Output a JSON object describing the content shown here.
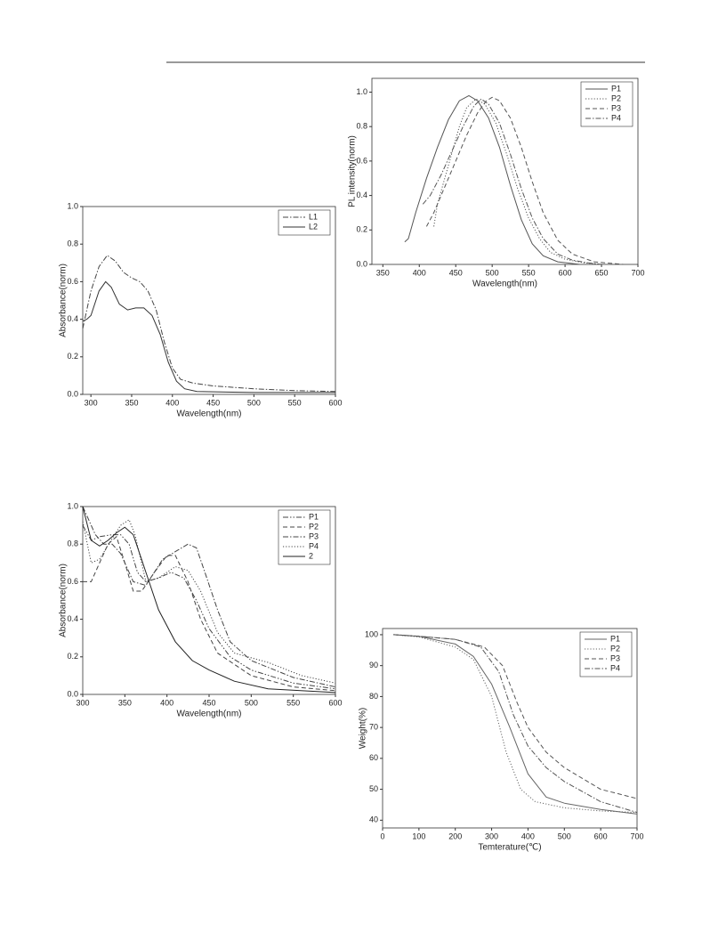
{
  "chart_data": [
    {
      "type": "line",
      "ylabel": "PL intensity(norm)",
      "xlabel": "Wavelength(nm)",
      "legend": "upper right",
      "xlim": [
        335,
        700
      ],
      "ylim": [
        0,
        1.08
      ],
      "xticks": [
        350,
        400,
        450,
        500,
        550,
        600,
        650,
        700
      ],
      "yticks": [
        {
          "value": 0,
          "label": "0.0"
        },
        0.2,
        0.4,
        0.6,
        0.8,
        {
          "value": 1,
          "label": "1.0"
        }
      ],
      "series": [
        {
          "name": "P1",
          "color": "#555555",
          "linestyle": "-",
          "x": [
            380,
            385,
            395,
            410,
            425,
            440,
            455,
            468,
            480,
            495,
            510,
            525,
            540,
            555,
            570,
            590,
            620
          ],
          "values": [
            0.13,
            0.15,
            0.3,
            0.5,
            0.68,
            0.84,
            0.95,
            0.98,
            0.95,
            0.85,
            0.68,
            0.46,
            0.26,
            0.12,
            0.05,
            0.015,
            0.0
          ]
        },
        {
          "name": "P2",
          "color": "#555555",
          "linestyle": ":",
          "x": [
            420,
            425,
            435,
            445,
            455,
            465,
            478,
            490,
            505,
            520,
            535,
            550,
            565,
            580,
            600,
            625,
            650
          ],
          "values": [
            0.22,
            0.35,
            0.5,
            0.65,
            0.8,
            0.91,
            0.96,
            0.93,
            0.82,
            0.64,
            0.44,
            0.27,
            0.15,
            0.07,
            0.03,
            0.01,
            0.0
          ]
        },
        {
          "name": "P3",
          "color": "#555555",
          "linestyle": "--",
          "x": [
            410,
            420,
            435,
            450,
            465,
            480,
            492,
            500,
            510,
            525,
            540,
            555,
            570,
            590,
            610,
            640,
            680
          ],
          "values": [
            0.22,
            0.3,
            0.45,
            0.6,
            0.75,
            0.88,
            0.95,
            0.97,
            0.95,
            0.85,
            0.68,
            0.48,
            0.3,
            0.14,
            0.06,
            0.015,
            0.0
          ]
        },
        {
          "name": "P4",
          "color": "#555555",
          "linestyle": "-.",
          "x": [
            405,
            415,
            430,
            445,
            460,
            475,
            485,
            495,
            510,
            525,
            540,
            555,
            570,
            590,
            610,
            630,
            650
          ],
          "values": [
            0.35,
            0.4,
            0.52,
            0.66,
            0.8,
            0.92,
            0.96,
            0.93,
            0.82,
            0.64,
            0.44,
            0.27,
            0.15,
            0.06,
            0.025,
            0.01,
            0.0
          ]
        }
      ]
    },
    {
      "type": "line",
      "ylabel": "Absorbance(norm)",
      "xlabel": "Wavelength(nm)",
      "legend": "upper right",
      "xlim": [
        290,
        600
      ],
      "ylim": [
        0,
        1.0
      ],
      "xticks": [
        300,
        350,
        400,
        450,
        500,
        550,
        600
      ],
      "yticks": [
        {
          "value": 0,
          "label": "0.0"
        },
        0.2,
        0.4,
        0.6,
        0.8,
        {
          "value": 1,
          "label": "1.0"
        }
      ],
      "series": [
        {
          "name": "L1",
          "color": "#444444",
          "linestyle": "-.",
          "x": [
            290,
            300,
            310,
            320,
            330,
            340,
            350,
            360,
            370,
            380,
            390,
            400,
            410,
            425,
            450,
            500,
            550,
            600
          ],
          "values": [
            0.35,
            0.55,
            0.68,
            0.74,
            0.71,
            0.65,
            0.62,
            0.6,
            0.55,
            0.45,
            0.28,
            0.14,
            0.08,
            0.06,
            0.045,
            0.03,
            0.02,
            0.015
          ]
        },
        {
          "name": "L2",
          "color": "#333333",
          "linestyle": "-",
          "x": [
            290,
            295,
            300,
            310,
            318,
            325,
            335,
            345,
            355,
            365,
            375,
            385,
            395,
            405,
            415,
            430,
            500,
            600
          ],
          "values": [
            0.39,
            0.4,
            0.42,
            0.55,
            0.6,
            0.57,
            0.48,
            0.45,
            0.46,
            0.46,
            0.42,
            0.32,
            0.17,
            0.07,
            0.03,
            0.015,
            0.01,
            0.01
          ]
        }
      ]
    },
    {
      "type": "line",
      "ylabel": "Absorbance(norm)",
      "xlabel": "Wavelength(nm)",
      "legend": "upper right",
      "xlim": [
        300,
        600
      ],
      "ylim": [
        0,
        1.0
      ],
      "xticks": [
        300,
        350,
        400,
        450,
        500,
        550,
        600
      ],
      "yticks": [
        {
          "value": 0,
          "label": "0.0"
        },
        0.2,
        0.4,
        0.6,
        0.8,
        {
          "value": 1,
          "label": "1.0"
        }
      ],
      "series": [
        {
          "name": "P1",
          "color": "#444444",
          "linestyle": "-..",
          "x": [
            300,
            310,
            320,
            335,
            345,
            355,
            365,
            375,
            390,
            405,
            420,
            435,
            450,
            475,
            500,
            550,
            600
          ],
          "values": [
            0.9,
            0.82,
            0.84,
            0.85,
            0.85,
            0.8,
            0.65,
            0.6,
            0.62,
            0.65,
            0.62,
            0.5,
            0.35,
            0.2,
            0.13,
            0.06,
            0.03
          ]
        },
        {
          "name": "P2",
          "color": "#444444",
          "linestyle": "--",
          "x": [
            300,
            310,
            320,
            330,
            340,
            350,
            360,
            370,
            385,
            400,
            410,
            425,
            440,
            460,
            500,
            550,
            600
          ],
          "values": [
            0.6,
            0.6,
            0.7,
            0.8,
            0.84,
            0.7,
            0.55,
            0.55,
            0.65,
            0.74,
            0.74,
            0.6,
            0.4,
            0.22,
            0.1,
            0.04,
            0.02
          ]
        },
        {
          "name": "P3",
          "color": "#444444",
          "linestyle": "-.",
          "x": [
            300,
            315,
            325,
            335,
            345,
            360,
            375,
            395,
            410,
            425,
            435,
            445,
            460,
            475,
            500,
            550,
            600
          ],
          "values": [
            1.0,
            0.85,
            0.8,
            0.8,
            0.75,
            0.6,
            0.58,
            0.72,
            0.76,
            0.8,
            0.78,
            0.65,
            0.45,
            0.28,
            0.18,
            0.09,
            0.04
          ]
        },
        {
          "name": "P4",
          "color": "#444444",
          "linestyle": ":",
          "x": [
            300,
            310,
            320,
            335,
            345,
            355,
            362,
            375,
            390,
            410,
            425,
            440,
            460,
            480,
            520,
            560,
            600
          ],
          "values": [
            0.92,
            0.7,
            0.72,
            0.83,
            0.9,
            0.93,
            0.85,
            0.6,
            0.62,
            0.68,
            0.66,
            0.55,
            0.33,
            0.22,
            0.17,
            0.1,
            0.06
          ]
        },
        {
          "name": "2",
          "color": "#222222",
          "linestyle": "-",
          "x": [
            300,
            310,
            320,
            330,
            340,
            350,
            360,
            375,
            390,
            410,
            430,
            450,
            480,
            520,
            600
          ],
          "values": [
            1.0,
            0.82,
            0.79,
            0.82,
            0.86,
            0.89,
            0.85,
            0.65,
            0.45,
            0.28,
            0.18,
            0.13,
            0.07,
            0.03,
            0.01
          ]
        }
      ]
    },
    {
      "type": "line",
      "ylabel": "Weight(%)",
      "xlabel": "Temterature(℃)",
      "legend": "upper right",
      "xlim": [
        0,
        700
      ],
      "ylim": [
        37.5,
        102
      ],
      "xticks": [
        0,
        100,
        200,
        300,
        400,
        500,
        600,
        700
      ],
      "yticks": [
        40,
        50,
        60,
        70,
        80,
        90,
        100
      ],
      "series": [
        {
          "name": "P1",
          "color": "#666666",
          "linestyle": "-",
          "x": [
            30,
            100,
            200,
            250,
            300,
            350,
            400,
            450,
            500,
            600,
            700
          ],
          "values": [
            100,
            99.5,
            97,
            93,
            84,
            70,
            55,
            47.5,
            45.5,
            43.5,
            42
          ]
        },
        {
          "name": "P2",
          "color": "#666666",
          "linestyle": ":",
          "x": [
            30,
            100,
            200,
            250,
            300,
            340,
            380,
            420,
            500,
            600,
            700
          ],
          "values": [
            100,
            99.3,
            96,
            92,
            80,
            62,
            50,
            46,
            44,
            43,
            42.5
          ]
        },
        {
          "name": "P3",
          "color": "#555555",
          "linestyle": "--",
          "x": [
            30,
            100,
            200,
            280,
            330,
            370,
            400,
            450,
            500,
            600,
            700
          ],
          "values": [
            100,
            99.5,
            98.5,
            96,
            90,
            78,
            70,
            62,
            57,
            50,
            47
          ]
        },
        {
          "name": "P4",
          "color": "#555555",
          "linestyle": "-.",
          "x": [
            30,
            100,
            200,
            270,
            320,
            360,
            400,
            450,
            500,
            600,
            700
          ],
          "values": [
            100,
            99.5,
            98.5,
            96,
            88,
            74,
            64,
            57,
            52.5,
            46,
            42.5
          ]
        }
      ]
    }
  ]
}
